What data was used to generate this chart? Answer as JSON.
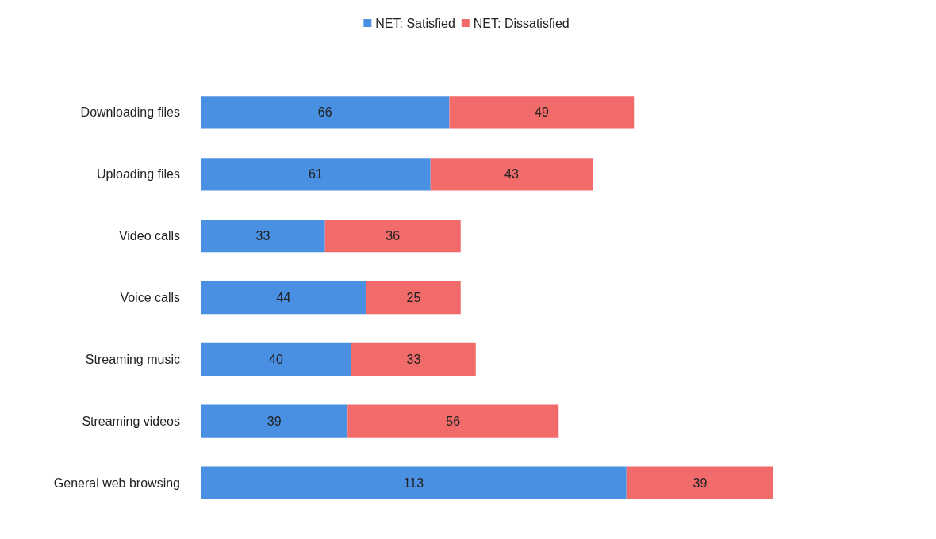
{
  "chart_data": {
    "type": "bar",
    "orientation": "horizontal",
    "stacked": true,
    "data_labels": true,
    "grid": false,
    "legend": "top",
    "tick_labels": "y",
    "categories": [
      "Downloading files",
      "Uploading files",
      "Video calls",
      "Voice calls",
      "Streaming music",
      "Streaming videos",
      "General web browsing"
    ],
    "series": [
      {
        "name": "NET: Satisfied",
        "color": "#4a90e2",
        "values": [
          66,
          61,
          33,
          44,
          40,
          39,
          113
        ]
      },
      {
        "name": "NET: Dissatisfied",
        "color": "#f26b6b",
        "values": [
          49,
          43,
          36,
          25,
          33,
          56,
          39
        ]
      }
    ]
  }
}
